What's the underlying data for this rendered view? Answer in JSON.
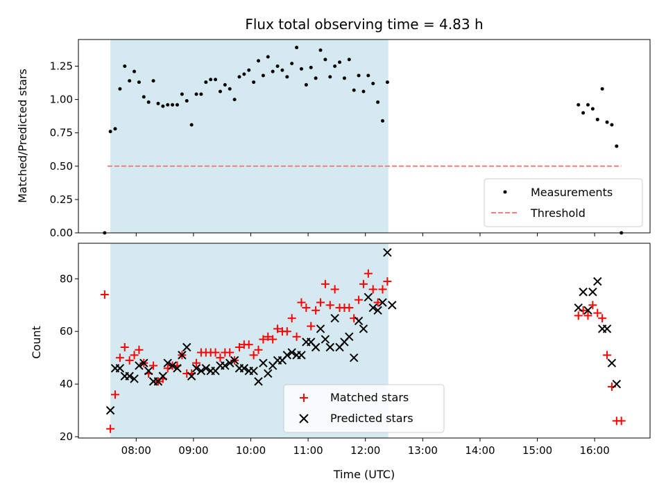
{
  "chart_data": [
    {
      "type": "scatter",
      "title": "Flux total observing time = 4.83 h",
      "ylabel": "Matched/Predicted stars",
      "xlabel": "",
      "ylim": [
        0,
        1.45
      ],
      "yticks": [
        "0.00",
        "0.25",
        "0.50",
        "0.75",
        "1.00",
        "1.25"
      ],
      "shaded_region": {
        "x_start": "07:33",
        "x_end": "12:24",
        "color": "#d4e9f0"
      },
      "legend": {
        "position": "bottom-right",
        "entries": [
          "Measurements",
          "Threshold"
        ]
      },
      "threshold": {
        "name": "Threshold",
        "value": 0.5,
        "x_start": "07:30",
        "x_end": "16:28",
        "color": "#f08080",
        "style": "dashed"
      },
      "series": [
        {
          "name": "Measurements",
          "color": "#000000",
          "marker": "dot",
          "points": [
            [
              "07:27",
              0.0
            ],
            [
              "07:33",
              0.76
            ],
            [
              "07:38",
              0.78
            ],
            [
              "07:43",
              1.08
            ],
            [
              "07:48",
              1.25
            ],
            [
              "07:53",
              1.14
            ],
            [
              "07:58",
              1.21
            ],
            [
              "08:03",
              1.13
            ],
            [
              "08:08",
              1.02
            ],
            [
              "08:13",
              0.98
            ],
            [
              "08:18",
              1.14
            ],
            [
              "08:23",
              0.97
            ],
            [
              "08:28",
              0.95
            ],
            [
              "08:33",
              0.96
            ],
            [
              "08:38",
              0.96
            ],
            [
              "08:43",
              0.96
            ],
            [
              "08:48",
              1.04
            ],
            [
              "08:53",
              0.99
            ],
            [
              "08:58",
              0.81
            ],
            [
              "09:03",
              1.04
            ],
            [
              "09:08",
              1.04
            ],
            [
              "09:13",
              1.13
            ],
            [
              "09:18",
              1.15
            ],
            [
              "09:23",
              1.15
            ],
            [
              "09:28",
              1.06
            ],
            [
              "09:33",
              1.11
            ],
            [
              "09:38",
              1.08
            ],
            [
              "09:43",
              1.0
            ],
            [
              "09:48",
              1.17
            ],
            [
              "09:53",
              1.19
            ],
            [
              "09:58",
              1.22
            ],
            [
              "10:03",
              1.13
            ],
            [
              "10:08",
              1.29
            ],
            [
              "10:13",
              1.18
            ],
            [
              "10:18",
              1.32
            ],
            [
              "10:23",
              1.21
            ],
            [
              "10:28",
              1.25
            ],
            [
              "10:33",
              1.22
            ],
            [
              "10:38",
              1.17
            ],
            [
              "10:43",
              1.27
            ],
            [
              "10:48",
              1.39
            ],
            [
              "10:53",
              1.23
            ],
            [
              "10:58",
              1.11
            ],
            [
              "11:03",
              1.24
            ],
            [
              "11:08",
              1.16
            ],
            [
              "11:13",
              1.37
            ],
            [
              "11:18",
              1.3
            ],
            [
              "11:23",
              1.17
            ],
            [
              "11:28",
              1.25
            ],
            [
              "11:33",
              1.28
            ],
            [
              "11:38",
              1.16
            ],
            [
              "11:43",
              1.3
            ],
            [
              "11:48",
              1.07
            ],
            [
              "11:53",
              1.18
            ],
            [
              "11:58",
              1.06
            ],
            [
              "12:03",
              1.18
            ],
            [
              "12:08",
              1.12
            ],
            [
              "12:13",
              0.98
            ],
            [
              "12:18",
              0.84
            ],
            [
              "12:23",
              1.13
            ],
            [
              "15:43",
              0.96
            ],
            [
              "15:48",
              0.9
            ],
            [
              "15:53",
              0.96
            ],
            [
              "15:58",
              0.93
            ],
            [
              "16:03",
              0.85
            ],
            [
              "16:08",
              1.08
            ],
            [
              "16:13",
              0.83
            ],
            [
              "16:18",
              0.81
            ],
            [
              "16:23",
              0.65
            ],
            [
              "16:28",
              0.0
            ]
          ]
        }
      ]
    },
    {
      "type": "scatter",
      "title": "",
      "xlabel": "Time (UTC)",
      "ylabel": "Count",
      "ylim": [
        19.5,
        93.5
      ],
      "yticks": [
        "20",
        "40",
        "60",
        "80"
      ],
      "xticks": [
        "08:00",
        "09:00",
        "10:00",
        "11:00",
        "12:00",
        "13:00",
        "14:00",
        "15:00",
        "16:00"
      ],
      "shaded_region": {
        "x_start": "07:33",
        "x_end": "12:24",
        "color": "#d4e9f0"
      },
      "legend": {
        "position": "bottom-center",
        "entries": [
          "Matched stars",
          "Predicted stars"
        ]
      },
      "series": [
        {
          "name": "Matched stars",
          "color": "#ff0000",
          "marker": "plus",
          "points": [
            [
              "07:27",
              74
            ],
            [
              "07:33",
              23
            ],
            [
              "07:38",
              36
            ],
            [
              "07:43",
              50
            ],
            [
              "07:48",
              54
            ],
            [
              "07:53",
              49
            ],
            [
              "07:58",
              51
            ],
            [
              "08:03",
              53
            ],
            [
              "08:08",
              48
            ],
            [
              "08:13",
              44
            ],
            [
              "08:18",
              47
            ],
            [
              "08:23",
              41
            ],
            [
              "08:28",
              42
            ],
            [
              "08:33",
              46
            ],
            [
              "08:38",
              47
            ],
            [
              "08:43",
              47
            ],
            [
              "08:48",
              51
            ],
            [
              "08:53",
              44
            ],
            [
              "08:58",
              44
            ],
            [
              "09:03",
              48
            ],
            [
              "09:08",
              52
            ],
            [
              "09:13",
              52
            ],
            [
              "09:18",
              52
            ],
            [
              "09:23",
              52
            ],
            [
              "09:28",
              50
            ],
            [
              "09:33",
              52
            ],
            [
              "09:38",
              52
            ],
            [
              "09:43",
              49
            ],
            [
              "09:48",
              54
            ],
            [
              "09:53",
              55
            ],
            [
              "09:58",
              55
            ],
            [
              "10:03",
              51
            ],
            [
              "10:08",
              53
            ],
            [
              "10:13",
              57
            ],
            [
              "10:18",
              58
            ],
            [
              "10:23",
              57
            ],
            [
              "10:28",
              61
            ],
            [
              "10:33",
              60
            ],
            [
              "10:38",
              60
            ],
            [
              "10:43",
              65
            ],
            [
              "10:48",
              58
            ],
            [
              "10:53",
              71
            ],
            [
              "10:58",
              69
            ],
            [
              "11:03",
              62
            ],
            [
              "11:08",
              68
            ],
            [
              "11:13",
              71
            ],
            [
              "11:18",
              78
            ],
            [
              "11:23",
              70
            ],
            [
              "11:28",
              76
            ],
            [
              "11:33",
              69
            ],
            [
              "11:38",
              69
            ],
            [
              "11:43",
              69
            ],
            [
              "11:48",
              65
            ],
            [
              "11:53",
              72
            ],
            [
              "11:58",
              78
            ],
            [
              "12:03",
              82
            ],
            [
              "12:08",
              76
            ],
            [
              "12:13",
              71
            ],
            [
              "12:18",
              76
            ],
            [
              "12:23",
              79
            ],
            [
              "15:43",
              66
            ],
            [
              "15:48",
              68
            ],
            [
              "15:53",
              66
            ],
            [
              "15:58",
              70
            ],
            [
              "16:03",
              67
            ],
            [
              "16:08",
              65
            ],
            [
              "16:13",
              51
            ],
            [
              "16:18",
              39
            ],
            [
              "16:23",
              26
            ],
            [
              "16:28",
              26
            ]
          ]
        },
        {
          "name": "Predicted stars",
          "color": "#000000",
          "marker": "x",
          "points": [
            [
              "07:33",
              30
            ],
            [
              "07:38",
              46
            ],
            [
              "07:43",
              46
            ],
            [
              "07:48",
              43
            ],
            [
              "07:53",
              43
            ],
            [
              "07:58",
              42
            ],
            [
              "08:03",
              47
            ],
            [
              "08:08",
              48
            ],
            [
              "08:13",
              45
            ],
            [
              "08:18",
              41
            ],
            [
              "08:23",
              41
            ],
            [
              "08:28",
              43
            ],
            [
              "08:33",
              48
            ],
            [
              "08:38",
              47
            ],
            [
              "08:43",
              46
            ],
            [
              "08:48",
              51
            ],
            [
              "08:53",
              54
            ],
            [
              "08:58",
              43
            ],
            [
              "09:03",
              46
            ],
            [
              "09:08",
              45
            ],
            [
              "09:13",
              46
            ],
            [
              "09:18",
              45
            ],
            [
              "09:23",
              45
            ],
            [
              "09:28",
              47
            ],
            [
              "09:33",
              47
            ],
            [
              "09:38",
              48
            ],
            [
              "09:43",
              49
            ],
            [
              "09:48",
              46
            ],
            [
              "09:53",
              46
            ],
            [
              "09:58",
              45
            ],
            [
              "10:03",
              45
            ],
            [
              "10:08",
              41
            ],
            [
              "10:13",
              48
            ],
            [
              "10:18",
              44
            ],
            [
              "10:23",
              47
            ],
            [
              "10:28",
              49
            ],
            [
              "10:33",
              49
            ],
            [
              "10:38",
              51
            ],
            [
              "10:43",
              52
            ],
            [
              "10:48",
              51
            ],
            [
              "10:53",
              51
            ],
            [
              "10:58",
              56
            ],
            [
              "11:03",
              56
            ],
            [
              "11:08",
              54
            ],
            [
              "11:13",
              61
            ],
            [
              "11:18",
              57
            ],
            [
              "11:23",
              54
            ],
            [
              "11:28",
              65
            ],
            [
              "11:33",
              54
            ],
            [
              "11:38",
              56
            ],
            [
              "11:43",
              58
            ],
            [
              "11:48",
              50
            ],
            [
              "11:53",
              64
            ],
            [
              "11:58",
              61
            ],
            [
              "12:03",
              73
            ],
            [
              "12:08",
              69
            ],
            [
              "12:13",
              68
            ],
            [
              "12:18",
              71
            ],
            [
              "12:23",
              90
            ],
            [
              "12:28",
              70
            ],
            [
              "15:43",
              69
            ],
            [
              "15:48",
              75
            ],
            [
              "15:53",
              68
            ],
            [
              "15:58",
              75
            ],
            [
              "16:03",
              79
            ],
            [
              "16:08",
              61
            ],
            [
              "16:13",
              61
            ],
            [
              "16:18",
              48
            ],
            [
              "16:23",
              40
            ]
          ]
        }
      ]
    }
  ]
}
